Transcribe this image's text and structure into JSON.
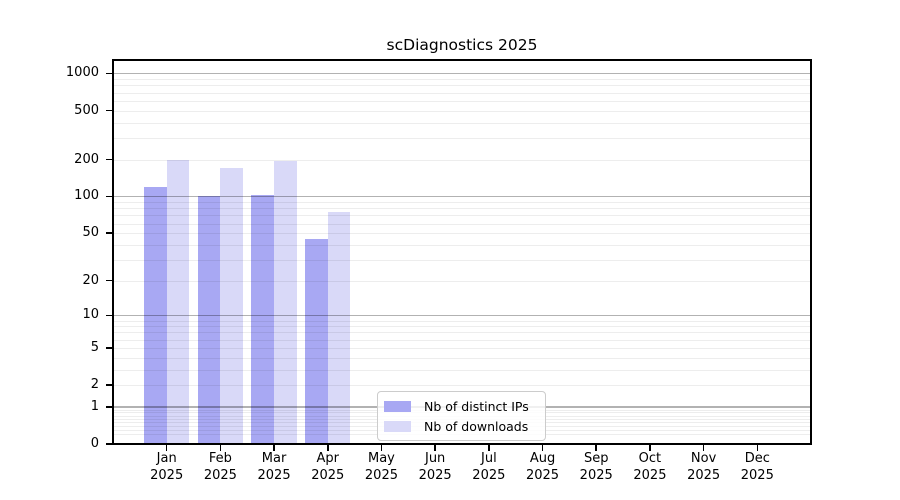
{
  "chart_data": {
    "type": "bar",
    "title": "scDiagnostics 2025",
    "categories": [
      "Jan",
      "Feb",
      "Mar",
      "Apr",
      "May",
      "Jun",
      "Jul",
      "Aug",
      "Sep",
      "Oct",
      "Nov",
      "Dec"
    ],
    "x_year_label": "2025",
    "series": [
      {
        "name": "Nb of distinct IPs",
        "color": "#a8a8f3",
        "values": [
          120,
          100,
          102,
          45,
          0,
          0,
          0,
          0,
          0,
          0,
          0,
          0
        ]
      },
      {
        "name": "Nb of downloads",
        "color": "#d9d9f8",
        "values": [
          200,
          170,
          195,
          75,
          0,
          0,
          0,
          0,
          0,
          0,
          0,
          0
        ]
      }
    ],
    "yticks": [
      0,
      1,
      2,
      5,
      10,
      20,
      50,
      100,
      200,
      500,
      1000
    ],
    "ylim": [
      0,
      1285
    ],
    "xlabel": "",
    "ylabel": "",
    "scale": "log1p",
    "grid": "on",
    "grid_major_color": "#b5b5b5",
    "grid_minor_color": "#ededed",
    "axis_color": "#000000",
    "legend_position": "lower-center-inside"
  }
}
